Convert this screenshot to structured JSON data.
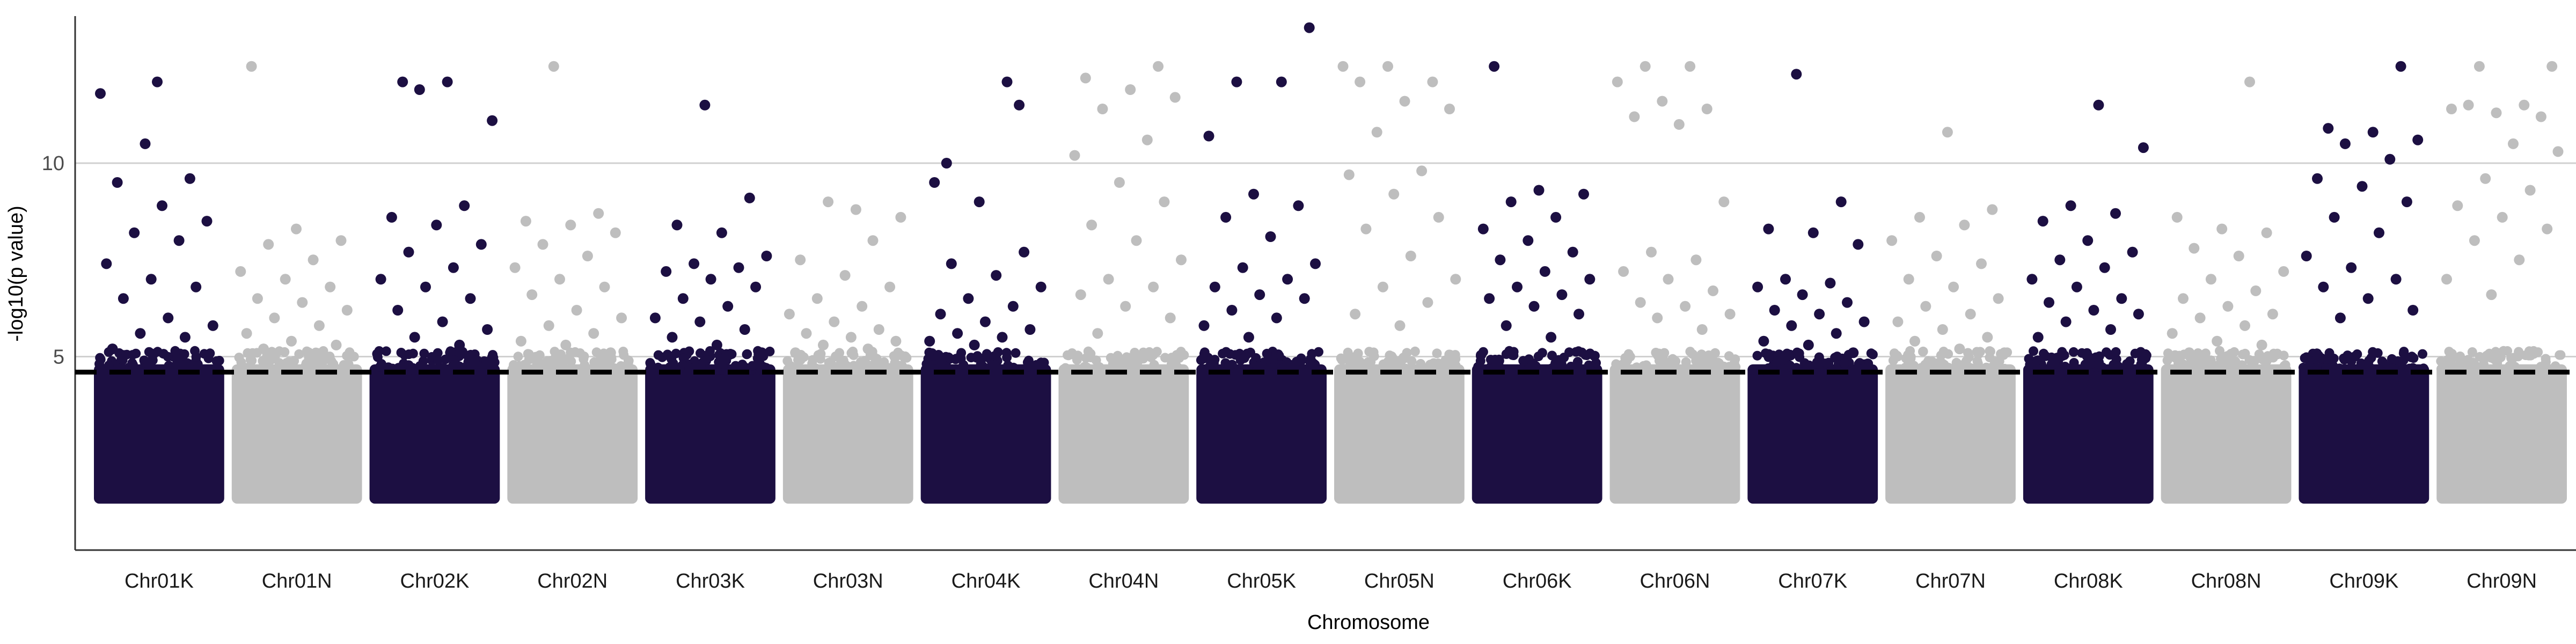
{
  "chart_data": {
    "type": "scatter",
    "title": "",
    "xlabel": "Chromosome",
    "ylabel": "-log10(p value)",
    "ylim": [
      0,
      13.8
    ],
    "yticks": [
      5,
      10
    ],
    "grid": {
      "horizontal_major": true,
      "vertical": false
    },
    "legend": "none",
    "threshold": 4.6,
    "colors": {
      "K": "#1c0f42",
      "N": "#bebebe",
      "threshold": "#000000",
      "grid": "#d0d0d0",
      "axis": "#333333"
    },
    "categories": [
      "Chr01K",
      "Chr01N",
      "Chr02K",
      "Chr02N",
      "Chr03K",
      "Chr03N",
      "Chr04K",
      "Chr04N",
      "Chr05K",
      "Chr05N",
      "Chr06K",
      "Chr06N",
      "Chr07K",
      "Chr07N",
      "Chr08K",
      "Chr08N",
      "Chr09K",
      "Chr09N"
    ],
    "series": [
      {
        "group": "K",
        "values": [
          11.8,
          10.5,
          9.6,
          9.5,
          8.9,
          8.5,
          8.2,
          8.0,
          7.4,
          7.0,
          6.8,
          6.5,
          6.0,
          5.8,
          5.6,
          5.5,
          5.2,
          12.1
        ]
      },
      {
        "group": "N",
        "values": [
          12.5,
          8.3,
          8.0,
          7.9,
          7.5,
          7.2,
          7.0,
          6.8,
          6.5,
          6.4,
          6.2,
          6.0,
          5.8,
          5.6,
          5.4,
          5.3,
          5.2,
          5.1
        ]
      },
      {
        "group": "K",
        "values": [
          12.1,
          12.1,
          11.1,
          11.9,
          8.9,
          8.6,
          8.4,
          7.9,
          7.7,
          7.3,
          7.0,
          6.8,
          6.5,
          6.2,
          5.9,
          5.7,
          5.5,
          5.3
        ]
      },
      {
        "group": "N",
        "values": [
          12.5,
          8.7,
          8.5,
          8.4,
          8.2,
          7.9,
          7.6,
          7.3,
          7.0,
          6.8,
          6.6,
          6.2,
          6.0,
          5.8,
          5.6,
          5.4,
          5.3,
          5.1
        ]
      },
      {
        "group": "K",
        "values": [
          11.5,
          9.1,
          8.4,
          8.2,
          7.6,
          7.4,
          7.3,
          7.2,
          7.0,
          6.8,
          6.5,
          6.3,
          6.0,
          5.9,
          5.7,
          5.5,
          5.3,
          5.1
        ]
      },
      {
        "group": "N",
        "values": [
          8.8,
          8.6,
          9.0,
          8.0,
          7.5,
          7.1,
          6.8,
          6.5,
          6.3,
          6.1,
          5.9,
          5.7,
          5.6,
          5.5,
          5.4,
          5.3,
          5.2,
          5.1
        ]
      },
      {
        "group": "K",
        "values": [
          12.1,
          9.5,
          9.0,
          7.7,
          7.4,
          7.1,
          6.8,
          6.5,
          6.3,
          6.1,
          5.9,
          5.7,
          5.6,
          5.5,
          5.4,
          5.3,
          11.5,
          10.0
        ]
      },
      {
        "group": "N",
        "values": [
          12.5,
          12.2,
          11.9,
          11.7,
          11.4,
          10.6,
          10.2,
          9.5,
          9.0,
          8.4,
          8.0,
          7.5,
          7.0,
          6.8,
          6.6,
          6.3,
          6.0,
          5.6
        ]
      },
      {
        "group": "K",
        "values": [
          13.5,
          12.1,
          12.1,
          10.7,
          9.2,
          8.9,
          8.6,
          8.1,
          7.4,
          7.3,
          7.0,
          6.8,
          6.6,
          6.5,
          6.2,
          6.0,
          5.8,
          5.5
        ]
      },
      {
        "group": "N",
        "values": [
          12.5,
          12.5,
          12.1,
          12.1,
          11.6,
          11.4,
          10.8,
          9.8,
          9.7,
          9.2,
          8.6,
          8.3,
          7.6,
          7.0,
          6.8,
          6.4,
          6.1,
          5.8
        ]
      },
      {
        "group": "K",
        "values": [
          12.5,
          9.3,
          9.2,
          9.0,
          8.6,
          8.3,
          8.0,
          7.7,
          7.5,
          7.2,
          7.0,
          6.8,
          6.6,
          6.5,
          6.3,
          6.1,
          5.8,
          5.5
        ]
      },
      {
        "group": "N",
        "values": [
          12.5,
          12.5,
          12.1,
          11.6,
          11.4,
          11.2,
          11.0,
          9.0,
          7.7,
          7.5,
          7.2,
          7.0,
          6.7,
          6.4,
          6.3,
          6.1,
          6.0,
          5.7
        ]
      },
      {
        "group": "K",
        "values": [
          12.3,
          9.0,
          8.3,
          8.2,
          7.9,
          7.0,
          6.9,
          6.8,
          6.6,
          6.4,
          6.2,
          6.1,
          5.9,
          5.8,
          5.6,
          5.4,
          5.3,
          5.1
        ]
      },
      {
        "group": "N",
        "values": [
          10.8,
          8.8,
          8.6,
          8.4,
          8.0,
          7.6,
          7.4,
          7.0,
          6.8,
          6.5,
          6.3,
          6.1,
          5.9,
          5.7,
          5.5,
          5.4,
          5.2,
          5.1
        ]
      },
      {
        "group": "K",
        "values": [
          11.5,
          10.4,
          8.9,
          8.7,
          8.5,
          8.0,
          7.7,
          7.5,
          7.3,
          7.0,
          6.8,
          6.5,
          6.4,
          6.2,
          6.1,
          5.9,
          5.7,
          5.5
        ]
      },
      {
        "group": "N",
        "values": [
          12.1,
          8.6,
          8.3,
          8.2,
          7.8,
          7.6,
          7.2,
          7.0,
          6.7,
          6.5,
          6.3,
          6.1,
          6.0,
          5.8,
          5.6,
          5.4,
          5.3,
          5.1
        ]
      },
      {
        "group": "K",
        "values": [
          12.5,
          10.9,
          10.8,
          10.6,
          10.5,
          10.1,
          9.6,
          9.4,
          9.0,
          8.6,
          8.2,
          7.6,
          7.3,
          7.0,
          6.8,
          6.5,
          6.2,
          6.0
        ]
      },
      {
        "group": "N",
        "values": [
          12.5,
          12.5,
          11.5,
          11.4,
          11.3,
          11.2,
          11.5,
          10.5,
          10.3,
          9.6,
          9.3,
          8.9,
          8.6,
          8.3,
          8.0,
          7.5,
          7.0,
          6.6
        ]
      }
    ],
    "base_range": [
      1.2,
      4.8
    ]
  }
}
